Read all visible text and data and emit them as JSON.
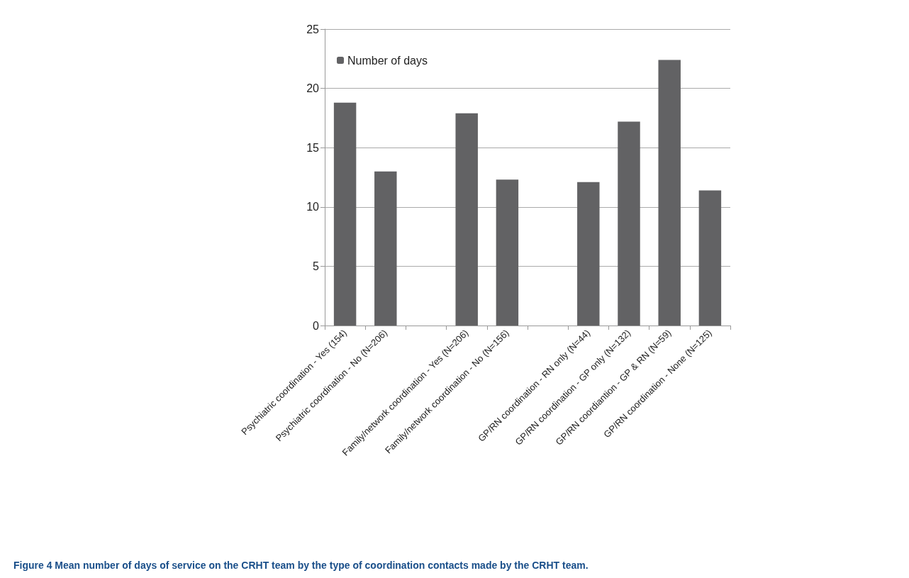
{
  "chart_data": {
    "type": "bar",
    "title": "Figure 4 Mean number of days of service on the CRHT team by the type of coordination contacts made by the CRHT team.",
    "categories": [
      "Psychiatric coordination - Yes (154)",
      "Psychiatric coordination - No (N=206)",
      null,
      "Family/network coordination - Yes (N=206)",
      "Family/network coordination - No (N=156)",
      null,
      "GP/RN coordination - RN only (N=44)",
      "GP/RN coordination - GP only (N=132)",
      "GP/RN coordiantion - GP & RN (N=59)",
      "GP/RN coordination - None (N=125)"
    ],
    "series": [
      {
        "name": "Number of days",
        "color": "#626264",
        "values": [
          18.8,
          13.0,
          null,
          17.9,
          12.3,
          null,
          12.1,
          17.2,
          22.4,
          11.4
        ]
      }
    ],
    "ylim": [
      0,
      25
    ],
    "yticks": [
      0,
      5,
      10,
      15,
      20,
      25
    ],
    "grid": "y",
    "legend": "top left"
  }
}
